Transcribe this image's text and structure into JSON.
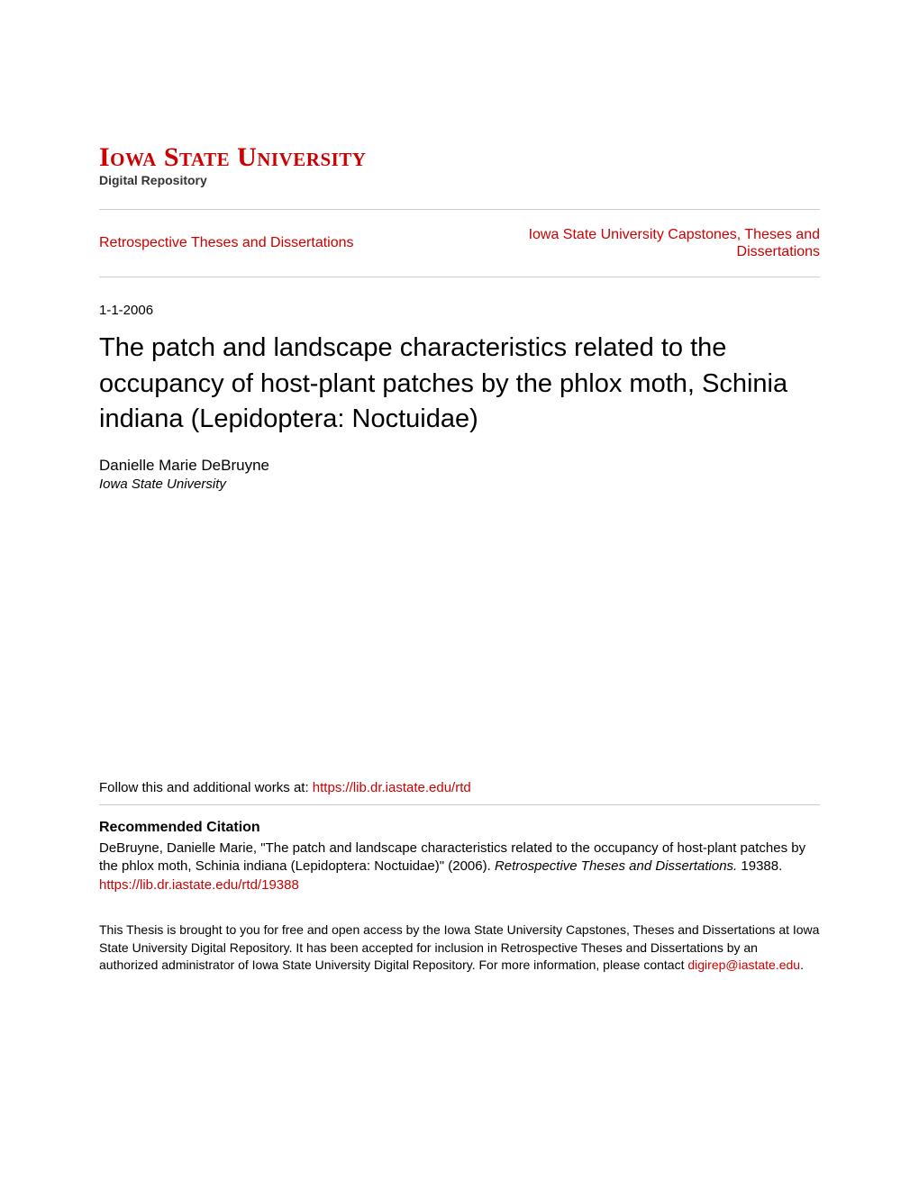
{
  "logo": {
    "university": "Iowa State University",
    "subtitle": "Digital Repository"
  },
  "nav": {
    "left_link": "Retrospective Theses and Dissertations",
    "right_link_line1": "Iowa State University Capstones, Theses and",
    "right_link_line2": "Dissertations"
  },
  "date": "1-1-2006",
  "title": "The patch and landscape characteristics related to the occupancy of host-plant patches by the phlox moth, Schinia indiana (Lepidoptera: Noctuidae)",
  "author": {
    "name": "Danielle Marie DeBruyne",
    "affiliation": "Iowa State University"
  },
  "follow": {
    "prefix": "Follow this and additional works at: ",
    "url": "https://lib.dr.iastate.edu/rtd"
  },
  "citation": {
    "heading": "Recommended Citation",
    "text_part1": "DeBruyne, Danielle Marie, \"The patch and landscape characteristics related to the occupancy of host-plant patches by the phlox moth, Schinia indiana (Lepidoptera: Noctuidae)\" (2006). ",
    "text_italic": "Retrospective Theses and Dissertations.",
    "text_part2": " 19388.",
    "url": "https://lib.dr.iastate.edu/rtd/19388"
  },
  "footer": {
    "text_part1": "This Thesis is brought to you for free and open access by the Iowa State University Capstones, Theses and Dissertations at Iowa State University Digital Repository. It has been accepted for inclusion in Retrospective Theses and Dissertations by an authorized administrator of Iowa State University Digital Repository. For more information, please contact ",
    "email": "digirep@iastate.edu",
    "text_part2": "."
  },
  "colors": {
    "brand_red": "#cc0000",
    "text_black": "#000000",
    "divider_gray": "#cccccc",
    "subtitle_dark": "#333333",
    "background": "#ffffff"
  }
}
